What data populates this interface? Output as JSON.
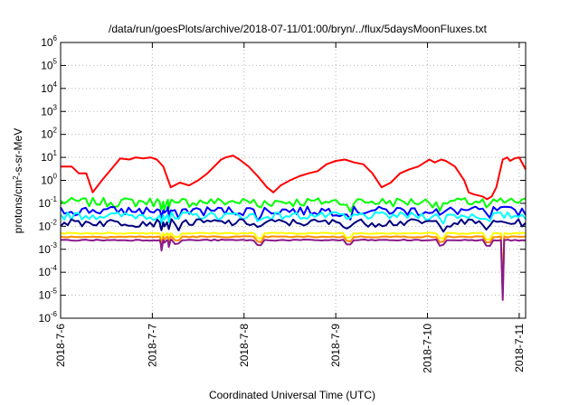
{
  "chart_data": {
    "type": "line",
    "title": "/data/run/goesPlots/archive/2018-07-11/01:00/bryn/../flux/5daysMoonFluxes.txt",
    "xlabel": "Coordinated Universal Time (UTC)",
    "ylabel": {
      "prefix": "protons/cm",
      "sup": "2",
      "suffix": "-s-sr-MeV"
    },
    "yscale": "log",
    "ylim": [
      1e-06,
      1000000.0
    ],
    "xlim": [
      0,
      5.07
    ],
    "grid": true,
    "x_ticks": [
      {
        "x": 0,
        "label": "2018-7-6"
      },
      {
        "x": 1,
        "label": "2018-7-7"
      },
      {
        "x": 2,
        "label": "2018-7-8"
      },
      {
        "x": 3,
        "label": "2018-7-9"
      },
      {
        "x": 4,
        "label": "2018-7-10"
      },
      {
        "x": 5,
        "label": "2018-7-11"
      }
    ],
    "y_ticks": [
      {
        "exp": -6,
        "base": "10",
        "sup": "-6"
      },
      {
        "exp": -5,
        "base": "10",
        "sup": "-5"
      },
      {
        "exp": -4,
        "base": "10",
        "sup": "-4"
      },
      {
        "exp": -3,
        "base": "10",
        "sup": "-3"
      },
      {
        "exp": -2,
        "base": "10",
        "sup": "-2"
      },
      {
        "exp": -1,
        "base": "10",
        "sup": "-1"
      },
      {
        "exp": 0,
        "base": "10",
        "sup": "0"
      },
      {
        "exp": 1,
        "base": "10",
        "sup": "1"
      },
      {
        "exp": 2,
        "base": "10",
        "sup": "2"
      },
      {
        "exp": 3,
        "base": "10",
        "sup": "3"
      },
      {
        "exp": 4,
        "base": "10",
        "sup": "4"
      },
      {
        "exp": 5,
        "base": "10",
        "sup": "5"
      },
      {
        "exp": 6,
        "base": "10",
        "sup": "6"
      }
    ],
    "series": [
      {
        "color": "#ff0000",
        "x": [
          0,
          0.12,
          0.2,
          0.28,
          0.35,
          0.45,
          0.55,
          0.65,
          0.75,
          0.82,
          0.9,
          0.98,
          1.05,
          1.12,
          1.2,
          1.3,
          1.4,
          1.5,
          1.6,
          1.7,
          1.75,
          1.8,
          1.88,
          1.95,
          2.05,
          2.15,
          2.25,
          2.32,
          2.4,
          2.5,
          2.6,
          2.7,
          2.8,
          2.9,
          3.0,
          3.1,
          3.2,
          3.3,
          3.4,
          3.5,
          3.6,
          3.7,
          3.8,
          3.9,
          3.97,
          4.02,
          4.08,
          4.15,
          4.2,
          4.3,
          4.4,
          4.45,
          4.5,
          4.6,
          4.65,
          4.7,
          4.75,
          4.82,
          4.87,
          4.9,
          4.95,
          5.0,
          5.07
        ],
        "values": [
          4,
          4,
          2,
          2,
          0.3,
          1.0,
          3,
          9,
          8,
          10,
          9,
          10,
          8,
          4,
          0.5,
          0.8,
          0.6,
          1.0,
          2,
          5,
          8,
          10,
          12,
          8,
          4,
          1.5,
          0.5,
          0.3,
          0.6,
          1.0,
          1.5,
          2,
          2.5,
          5,
          7,
          8,
          6,
          5,
          2,
          0.5,
          0.8,
          2,
          3,
          4,
          6,
          8,
          6,
          8,
          7,
          4,
          1.0,
          0.3,
          0.25,
          0.2,
          0.15,
          0.2,
          0.5,
          8,
          10,
          7,
          9,
          10,
          3
        ]
      },
      {
        "color": "#00ff00",
        "values": [
          0.12
        ]
      },
      {
        "color": "#0000ff",
        "values": [
          0.05
        ]
      },
      {
        "color": "#00ffff",
        "values": [
          0.03
        ]
      },
      {
        "color": "#000080",
        "values": [
          0.015
        ]
      },
      {
        "color": "#ffff00",
        "values": [
          0.005
        ]
      },
      {
        "color": "#ff8c00",
        "values": [
          0.0035
        ]
      },
      {
        "color": "#8b1a8b",
        "values": [
          0.0025
        ]
      }
    ]
  }
}
